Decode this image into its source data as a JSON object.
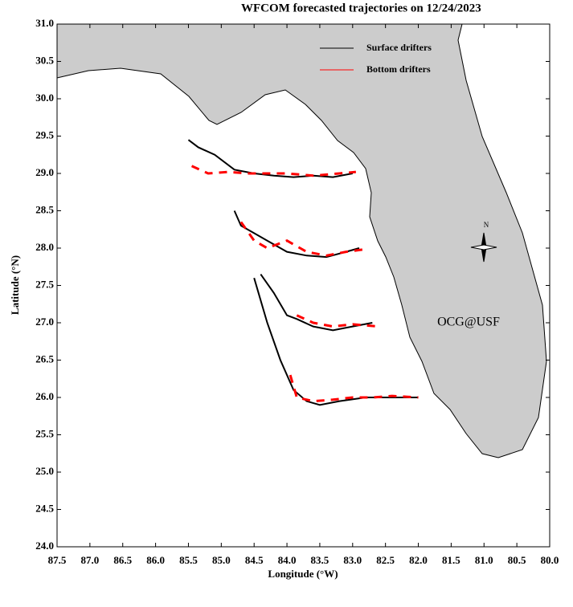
{
  "chart_data": {
    "type": "trajectory-map",
    "title": "WFCOM forecasted trajectories on 12/24/2023",
    "x_label": "Longitude (°W)",
    "y_label": "Latitude (°N)",
    "xlim": [
      87.5,
      80.0
    ],
    "xticks": [
      87.5,
      {
        "value": 87,
        "label": "87.0"
      },
      86.5,
      {
        "value": 86,
        "label": "86.0"
      },
      85.5,
      {
        "value": 85,
        "label": "85.0"
      },
      84.5,
      {
        "value": 84,
        "label": "84.0"
      },
      83.5,
      {
        "value": 83,
        "label": "83.0"
      },
      82.5,
      {
        "value": 82,
        "label": "82.0"
      },
      81.5,
      {
        "value": 81,
        "label": "81.0"
      },
      80.5,
      {
        "value": 80,
        "label": "80.0"
      }
    ],
    "ylim": [
      24.0,
      31.0
    ],
    "yticks": [
      {
        "value": 24,
        "label": "24.0"
      },
      24.5,
      {
        "value": 25,
        "label": "25.0"
      },
      25.5,
      {
        "value": 26,
        "label": "26.0"
      },
      26.5,
      {
        "value": 27,
        "label": "27.0"
      },
      27.5,
      {
        "value": 28,
        "label": "28.0"
      },
      28.5,
      {
        "value": 29,
        "label": "29.0"
      },
      29.5,
      {
        "value": 30,
        "label": "30.0"
      },
      30.5,
      {
        "value": 31,
        "label": "31.0"
      }
    ],
    "series": [
      {
        "name": "Surface drifters",
        "color": "#000000",
        "dashed": false,
        "tracks": [
          {
            "x": [
              85.5,
              85.35,
              85.1,
              84.8,
              84.5,
              84.2,
              83.9,
              83.6,
              83.3,
              83.0
            ],
            "values": [
              29.45,
              29.35,
              29.25,
              29.05,
              29.0,
              28.97,
              28.95,
              28.97,
              28.95,
              29.0
            ]
          },
          {
            "x": [
              84.8,
              84.7,
              84.5,
              84.3,
              84.0,
              83.7,
              83.4,
              83.1,
              82.9
            ],
            "values": [
              28.5,
              28.3,
              28.2,
              28.1,
              27.95,
              27.9,
              27.88,
              27.95,
              28.0
            ]
          },
          {
            "x": [
              84.4,
              84.2,
              84.0,
              83.85,
              83.6,
              83.3,
              83.0,
              82.7
            ],
            "values": [
              27.65,
              27.4,
              27.1,
              27.05,
              26.95,
              26.9,
              26.95,
              27.0
            ]
          },
          {
            "x": [
              84.5,
              84.3,
              84.1,
              83.9,
              83.7,
              83.5,
              83.2,
              82.8,
              82.4,
              82.0
            ],
            "values": [
              27.6,
              27.0,
              26.5,
              26.1,
              25.95,
              25.9,
              25.95,
              26.0,
              26.0,
              26.0
            ]
          }
        ]
      },
      {
        "name": "Bottom drifters",
        "color": "#ff0000",
        "dashed": true,
        "tracks": [
          {
            "x": [
              85.45,
              85.2,
              84.9,
              84.6,
              84.3,
              84.0,
              83.6,
              83.2,
              82.95
            ],
            "values": [
              29.1,
              29.0,
              29.02,
              29.0,
              29.0,
              29.0,
              28.97,
              29.0,
              29.02
            ]
          },
          {
            "x": [
              84.7,
              84.5,
              84.3,
              84.0,
              83.7,
              83.4,
              83.1,
              82.85
            ],
            "values": [
              28.35,
              28.1,
              28.0,
              28.1,
              27.95,
              27.9,
              27.95,
              27.98
            ]
          },
          {
            "x": [
              83.85,
              83.6,
              83.3,
              83.0,
              82.6
            ],
            "values": [
              27.1,
              27.0,
              26.95,
              26.98,
              26.95
            ]
          },
          {
            "x": [
              83.95,
              83.85,
              83.6,
              83.3,
              83.0,
              82.7,
              82.4,
              82.0
            ],
            "values": [
              26.3,
              26.0,
              25.95,
              25.97,
              26.0,
              26.0,
              26.02,
              26.0
            ]
          }
        ]
      }
    ],
    "annotations": [
      {
        "text": "OCG@USF",
        "color": "#ff0000"
      },
      {
        "text": "N",
        "color": "#000000"
      }
    ]
  }
}
